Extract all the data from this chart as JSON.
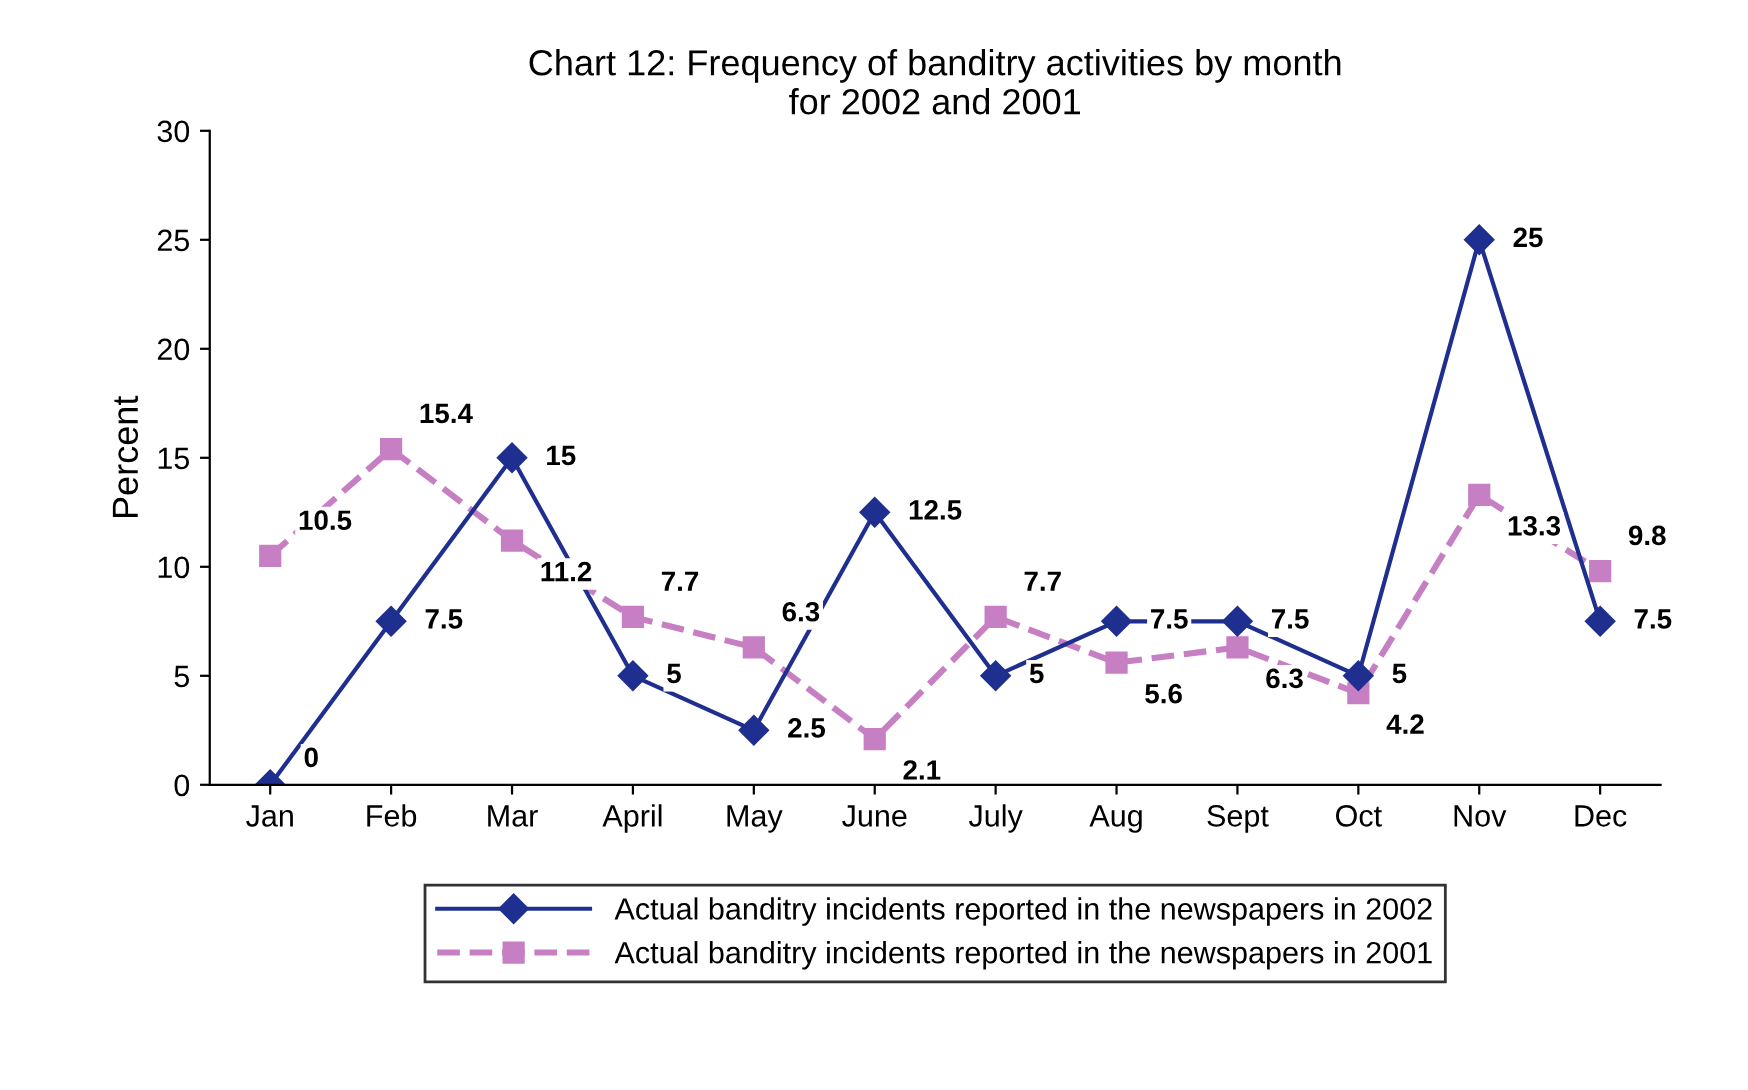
{
  "chart_data": {
    "type": "line",
    "title": "Chart 12: Frequency of banditry activities by month\nfor 2002 and 2001",
    "ylabel": "Percent",
    "categories": [
      "Jan",
      "Feb",
      "Mar",
      "April",
      "May",
      "June",
      "July",
      "Aug",
      "Sept",
      "Oct",
      "Nov",
      "Dec"
    ],
    "series": [
      {
        "name": "Actual banditry incidents reported in the newspapers in 2002",
        "color": "#1f2f8f",
        "marker": "diamond",
        "line_style": "solid",
        "values": [
          0,
          7.5,
          15,
          5,
          2.5,
          12.5,
          5,
          7.5,
          7.5,
          5,
          25,
          7.5
        ]
      },
      {
        "name": "Actual banditry incidents reported in the newspapers in 2001",
        "color": "#c77fc4",
        "marker": "square",
        "line_style": "dashed",
        "values": [
          10.5,
          15.4,
          11.2,
          7.7,
          6.3,
          2.1,
          7.7,
          5.6,
          6.3,
          4.2,
          13.3,
          9.8
        ]
      }
    ],
    "ylim": [
      0,
      30
    ],
    "yticks": [
      0,
      5,
      10,
      15,
      20,
      25,
      30
    ],
    "grid": false,
    "legend": "bottom",
    "data_labels": true
  }
}
